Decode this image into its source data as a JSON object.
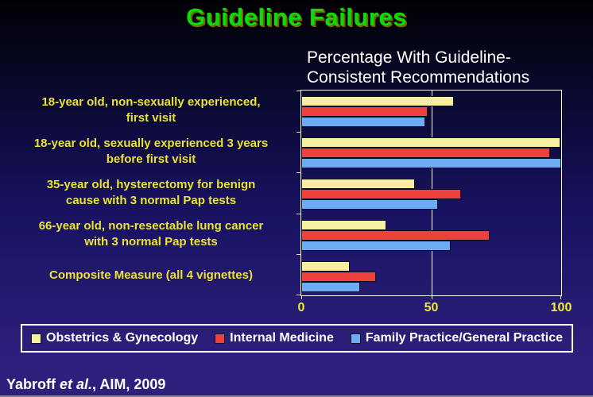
{
  "slide": {
    "title": "Guideline Failures",
    "citation": {
      "author": "Yabroff ",
      "etal": "et al.",
      "suffix": ", AIM, 2009"
    }
  },
  "chart_data": {
    "type": "bar",
    "orientation": "horizontal",
    "title": "Percentage With Guideline-\nConsistent Recommendations",
    "categories": [
      "18-year old, non-sexually experienced,\nfirst visit",
      "18-year old, sexually experienced 3 years\nbefore first visit",
      "35-year old, hysterectomy for benign\ncause with 3 normal Pap tests",
      "66-year old, non-resectable lung cancer\nwith 3 normal Pap tests",
      "Composite Measure (all 4 vignettes)"
    ],
    "series": [
      {
        "name": "Obstetrics & Gynecology",
        "color": "#f6f0a0",
        "values": [
          58,
          99,
          43,
          32,
          18
        ]
      },
      {
        "name": "Internal Medicine",
        "color": "#ef4040",
        "values": [
          48,
          95,
          61,
          72,
          28
        ]
      },
      {
        "name": "Family Practice/General Practice",
        "color": "#6dabf2",
        "values": [
          47,
          99.5,
          52,
          57,
          22
        ]
      }
    ],
    "xlim": [
      0,
      100
    ],
    "xticks": [
      0,
      50,
      100
    ],
    "gridline_at": 50,
    "grid": true,
    "legend_position": "bottom"
  },
  "colors": {
    "title_green": "#09dc09",
    "title_shadow": "#7a6200",
    "category_label_yellow": "#ebe233",
    "tick_label_yellow": "#efea2d",
    "axis_white": "#ffffff",
    "bar_border": "#0b0b20",
    "legend_text": "#ffffff",
    "background_top": "#010104",
    "background_bottom": "#2d1f7c"
  }
}
